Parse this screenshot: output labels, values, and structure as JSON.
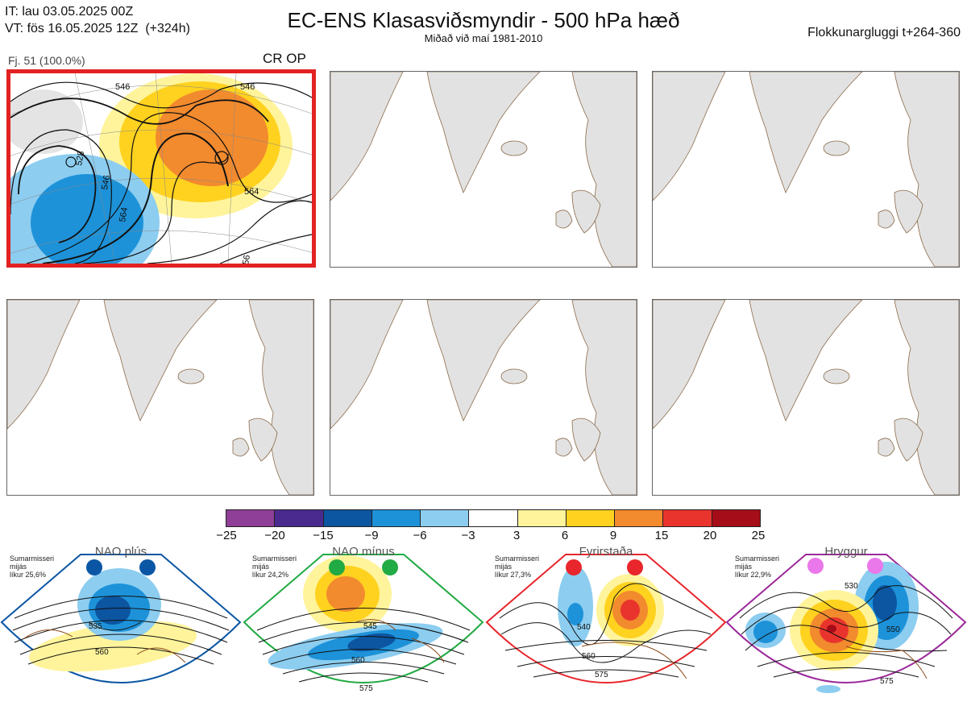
{
  "header": {
    "it_line": "IT: lau 03.05.2025 00Z",
    "vt_line": "VT: fös 16.05.2025 12Z  (+324h)",
    "title": "EC-ENS Klasasviðsmyndir - 500 hPa hæð",
    "subtitle": "Miðað við maí 1981-2010",
    "window": "Flokkunargluggi t+264-360"
  },
  "panels": [
    {
      "selected": true,
      "count_label": "Fj. 51 (100.0%)",
      "class_label": "CR OP",
      "contour_labels": [
        "546",
        "528",
        "546",
        "564",
        "564",
        "56",
        "546"
      ]
    },
    {
      "selected": false
    },
    {
      "selected": false
    },
    {
      "selected": false
    },
    {
      "selected": false
    },
    {
      "selected": false
    }
  ],
  "colorbar": {
    "colors": [
      "#8f3f97",
      "#4a2a8f",
      "#0c55a0",
      "#1d92d9",
      "#8ccdf0",
      "#ffffff",
      "#fff49b",
      "#ffd21f",
      "#f28a2e",
      "#e9342d",
      "#a50d18"
    ],
    "ticks": [
      "−25",
      "−20",
      "−15",
      "−9",
      "−6",
      "−3",
      "3",
      "6",
      "9",
      "15",
      "20",
      "25"
    ]
  },
  "regimes": [
    {
      "name": "NAO plús",
      "season": "Sumarmisseri",
      "mode": "mijás",
      "probability": "líkur 25,6%",
      "color": "#0b56a4",
      "contour_labels": [
        "535",
        "560"
      ]
    },
    {
      "name": "NAO mínus",
      "season": "Sumarmisseri",
      "mode": "mijás",
      "probability": "líkur 24,2%",
      "color": "#22aa44",
      "contour_labels": [
        "545",
        "560",
        "575"
      ]
    },
    {
      "name": "Fyrirstaða",
      "season": "Sumarmisseri",
      "mode": "mijás",
      "probability": "líkur 27,3%",
      "color": "#e8262b",
      "contour_labels": [
        "540",
        "560",
        "575"
      ]
    },
    {
      "name": "Hryggur",
      "season": "Sumarmisseri",
      "mode": "mijás",
      "probability": "líkur 22,9%",
      "color": "#9b2a9b",
      "contour_labels": [
        "530",
        "550",
        "575"
      ]
    }
  ]
}
